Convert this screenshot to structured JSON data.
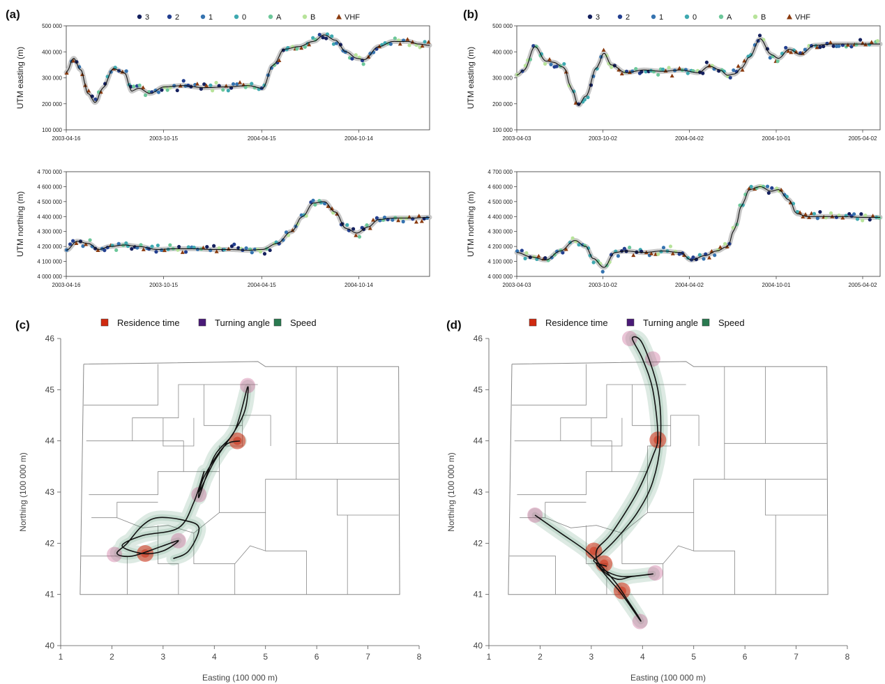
{
  "colors": {
    "q3": "#14205e",
    "q2": "#233f8f",
    "q1": "#3573b0",
    "q0": "#3ea9b0",
    "qA": "#6cc79a",
    "qB": "#b7e39a",
    "VHF": "#8a3a0e",
    "residence": "#d02a10",
    "turning": "#4a1a78",
    "speed": "#2a7a50",
    "border": "#888888",
    "track": "#111111"
  },
  "location_legend": {
    "entries": [
      {
        "key": "q3",
        "label": "3",
        "shape": "circle"
      },
      {
        "key": "q2",
        "label": "2",
        "shape": "circle"
      },
      {
        "key": "q1",
        "label": "1",
        "shape": "circle"
      },
      {
        "key": "q0",
        "label": "0",
        "shape": "circle"
      },
      {
        "key": "qA",
        "label": "A",
        "shape": "circle"
      },
      {
        "key": "qB",
        "label": "B",
        "shape": "circle"
      },
      {
        "key": "VHF",
        "label": "VHF",
        "shape": "triangle"
      }
    ]
  },
  "state_legend": {
    "entries": [
      {
        "key": "residence",
        "label": "Residence time"
      },
      {
        "key": "turning",
        "label": "Turning angle"
      },
      {
        "key": "speed",
        "label": "Speed"
      }
    ]
  },
  "chart_data": [
    {
      "panel": "(a)",
      "type": "line",
      "ylabel": "UTM easting (m)",
      "xlim": [
        0,
        1.0
      ],
      "ylim": [
        100000,
        500000
      ],
      "yticks": [
        100000,
        200000,
        300000,
        400000,
        500000
      ],
      "ytick_labels": [
        "100 000",
        "200 000",
        "300 000",
        "400 000",
        "500 000"
      ],
      "xtick_pos": [
        0,
        0.268,
        0.538,
        0.805
      ],
      "xtick_labels": [
        "2003-04-16",
        "2003-10-15",
        "2004-04-15",
        "2004-10-14"
      ],
      "series": [
        {
          "x": [
            0,
            0.02,
            0.04,
            0.06,
            0.08,
            0.1,
            0.13,
            0.16,
            0.18,
            0.2,
            0.23,
            0.27,
            0.32,
            0.38,
            0.44,
            0.5,
            0.54,
            0.57,
            0.6,
            0.64,
            0.68,
            0.71,
            0.74,
            0.77,
            0.8,
            0.82,
            0.86,
            0.9,
            0.94,
            0.97,
            1.0
          ],
          "y": [
            320000,
            375000,
            330000,
            240000,
            205000,
            260000,
            335000,
            320000,
            250000,
            260000,
            240000,
            265000,
            270000,
            262000,
            265000,
            270000,
            260000,
            350000,
            410000,
            420000,
            440000,
            465000,
            445000,
            400000,
            375000,
            370000,
            420000,
            440000,
            440000,
            430000,
            425000
          ]
        }
      ]
    },
    {
      "panel": "(a)",
      "type": "line",
      "ylabel": "UTM northing (m)",
      "xlim": [
        0,
        1.0
      ],
      "ylim": [
        4000000,
        4700000
      ],
      "yticks": [
        4000000,
        4100000,
        4200000,
        4300000,
        4400000,
        4500000,
        4600000,
        4700000
      ],
      "ytick_labels": [
        "4 000 000",
        "4 100 000",
        "4 200 000",
        "4 300 000",
        "4 400 000",
        "4 500 000",
        "4 600 000",
        "4 700 000"
      ],
      "xtick_pos": [
        0,
        0.268,
        0.538,
        0.805
      ],
      "xtick_labels": [
        "2003-04-16",
        "2003-10-15",
        "2004-04-15",
        "2004-10-14"
      ],
      "series": [
        {
          "x": [
            0,
            0.03,
            0.06,
            0.09,
            0.12,
            0.16,
            0.2,
            0.25,
            0.3,
            0.35,
            0.4,
            0.45,
            0.5,
            0.54,
            0.58,
            0.62,
            0.65,
            0.68,
            0.71,
            0.74,
            0.77,
            0.8,
            0.83,
            0.86,
            0.9,
            0.95,
            1.0
          ],
          "y": [
            4175000,
            4235000,
            4220000,
            4180000,
            4200000,
            4210000,
            4200000,
            4180000,
            4185000,
            4185000,
            4180000,
            4180000,
            4175000,
            4180000,
            4220000,
            4300000,
            4400000,
            4490000,
            4500000,
            4430000,
            4320000,
            4290000,
            4330000,
            4380000,
            4390000,
            4390000,
            4395000
          ]
        }
      ]
    },
    {
      "panel": "(b)",
      "type": "line",
      "ylabel": "UTM easting (m)",
      "xlim": [
        0,
        1.0
      ],
      "ylim": [
        100000,
        500000
      ],
      "yticks": [
        100000,
        200000,
        300000,
        400000,
        500000
      ],
      "ytick_labels": [
        "100 000",
        "200 000",
        "300 000",
        "400 000",
        "500 000"
      ],
      "xtick_pos": [
        0,
        0.237,
        0.475,
        0.714,
        0.952
      ],
      "xtick_labels": [
        "2003-04-03",
        "2003-10-02",
        "2004-04-02",
        "2004-10-01",
        "2005-04-02"
      ],
      "series": [
        {
          "x": [
            0,
            0.02,
            0.05,
            0.08,
            0.1,
            0.13,
            0.15,
            0.17,
            0.19,
            0.22,
            0.24,
            0.26,
            0.3,
            0.35,
            0.4,
            0.45,
            0.5,
            0.53,
            0.56,
            0.58,
            0.6,
            0.62,
            0.64,
            0.67,
            0.7,
            0.72,
            0.75,
            0.78,
            0.82,
            0.87,
            0.92,
            0.96,
            1.0
          ],
          "y": [
            310000,
            330000,
            420000,
            365000,
            360000,
            340000,
            260000,
            195000,
            230000,
            340000,
            395000,
            350000,
            320000,
            330000,
            325000,
            330000,
            320000,
            345000,
            330000,
            310000,
            315000,
            340000,
            380000,
            450000,
            390000,
            375000,
            410000,
            390000,
            425000,
            430000,
            430000,
            430000,
            430000
          ]
        }
      ]
    },
    {
      "panel": "(b)",
      "type": "line",
      "ylabel": "UTM northing (m)",
      "xlim": [
        0,
        1.0
      ],
      "ylim": [
        4000000,
        4700000
      ],
      "yticks": [
        4000000,
        4100000,
        4200000,
        4300000,
        4400000,
        4500000,
        4600000,
        4700000
      ],
      "ytick_labels": [
        "4 000 000",
        "4 100 000",
        "4 200 000",
        "4 300 000",
        "4 400 000",
        "4 500 000",
        "4 600 000",
        "4 700 000"
      ],
      "xtick_pos": [
        0,
        0.237,
        0.475,
        0.714,
        0.952
      ],
      "xtick_labels": [
        "2003-04-03",
        "2003-10-02",
        "2004-04-02",
        "2004-10-01",
        "2005-04-02"
      ],
      "series": [
        {
          "x": [
            0,
            0.04,
            0.08,
            0.12,
            0.16,
            0.19,
            0.21,
            0.24,
            0.27,
            0.3,
            0.35,
            0.4,
            0.45,
            0.48,
            0.52,
            0.55,
            0.58,
            0.6,
            0.62,
            0.64,
            0.67,
            0.7,
            0.72,
            0.75,
            0.77,
            0.8,
            0.85,
            0.9,
            0.95,
            1.0
          ],
          "y": [
            4160000,
            4130000,
            4110000,
            4170000,
            4240000,
            4200000,
            4120000,
            4060000,
            4160000,
            4170000,
            4160000,
            4170000,
            4160000,
            4110000,
            4140000,
            4170000,
            4200000,
            4320000,
            4480000,
            4580000,
            4600000,
            4570000,
            4580000,
            4510000,
            4420000,
            4400000,
            4400000,
            4400000,
            4395000,
            4395000
          ]
        }
      ]
    },
    {
      "panel": "(c)",
      "type": "line",
      "xlabel": "Easting (100 000 m)",
      "ylabel": "Northing (100 000 m)",
      "xlim": [
        1,
        8
      ],
      "ylim": [
        40,
        46
      ],
      "xticks": [
        1,
        2,
        3,
        4,
        5,
        6,
        7,
        8
      ],
      "yticks": [
        40,
        41,
        42,
        43,
        44,
        45,
        46
      ],
      "track": {
        "x": [
          3.2,
          3.5,
          3.7,
          3.4,
          2.9,
          2.6,
          2.3,
          2.1,
          2.4,
          3.0,
          3.3,
          3.0,
          2.6,
          2.2,
          2.6,
          3.3,
          3.6,
          3.8,
          3.7,
          4.0,
          4.4,
          4.6,
          4.65,
          4.4,
          4.0,
          3.7,
          3.8,
          4.2,
          4.5
        ],
        "y": [
          41.7,
          41.85,
          42.3,
          42.45,
          42.5,
          42.35,
          42.0,
          41.8,
          41.75,
          41.95,
          42.05,
          41.85,
          41.8,
          41.95,
          42.15,
          42.3,
          42.8,
          43.4,
          43.0,
          43.6,
          44.2,
          44.6,
          45.05,
          44.2,
          43.7,
          42.9,
          43.3,
          43.9,
          44.0
        ]
      },
      "residence_points": [
        {
          "x": 2.65,
          "y": 41.8
        },
        {
          "x": 4.45,
          "y": 44.0
        }
      ],
      "turning_points": [
        {
          "x": 2.05,
          "y": 41.78
        },
        {
          "x": 4.65,
          "y": 45.08
        },
        {
          "x": 3.3,
          "y": 42.05
        },
        {
          "x": 3.7,
          "y": 42.95
        }
      ]
    },
    {
      "panel": "(d)",
      "type": "line",
      "xlabel": "Easting (100 000 m)",
      "ylabel": "Northing (100 000 m)",
      "xlim": [
        1,
        8
      ],
      "ylim": [
        40,
        46
      ],
      "xticks": [
        1,
        2,
        3,
        4,
        5,
        6,
        7,
        8
      ],
      "yticks": [
        40,
        41,
        42,
        43,
        44,
        45,
        46
      ],
      "track": {
        "x": [
          1.9,
          2.4,
          2.9,
          3.2,
          3.5,
          3.7,
          3.9,
          3.95,
          3.6,
          3.3,
          3.1,
          3.2,
          3.6,
          4.2,
          3.8,
          3.5,
          3.2,
          3.1,
          3.4,
          3.9,
          4.2,
          4.3,
          4.2,
          4.0,
          3.8,
          4.0,
          4.3,
          4.35,
          4.2,
          3.9,
          3.5,
          3.2,
          3.05,
          3.3
        ],
        "y": [
          42.55,
          42.2,
          41.85,
          41.55,
          41.2,
          40.9,
          40.6,
          40.5,
          41.0,
          41.35,
          41.6,
          41.5,
          41.35,
          41.4,
          41.35,
          41.3,
          41.5,
          41.85,
          42.2,
          43.0,
          43.7,
          44.1,
          45.0,
          45.6,
          46.0,
          45.9,
          45.0,
          44.0,
          43.2,
          42.6,
          42.1,
          41.8,
          41.65,
          41.55
        ]
      },
      "residence_points": [
        {
          "x": 4.3,
          "y": 44.02
        },
        {
          "x": 3.05,
          "y": 41.85
        },
        {
          "x": 3.25,
          "y": 41.6
        },
        {
          "x": 3.6,
          "y": 41.07
        }
      ],
      "turning_points": [
        {
          "x": 1.9,
          "y": 42.55
        },
        {
          "x": 3.75,
          "y": 46.0
        },
        {
          "x": 4.25,
          "y": 41.42
        },
        {
          "x": 3.95,
          "y": 40.47
        },
        {
          "x": 4.2,
          "y": 45.6
        }
      ]
    }
  ]
}
